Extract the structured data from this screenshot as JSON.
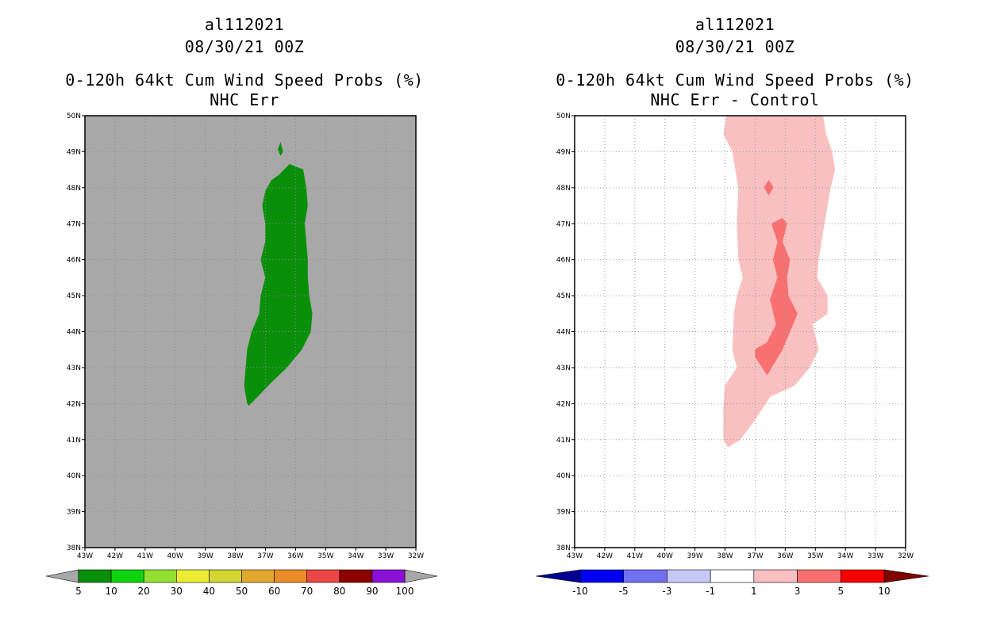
{
  "left_panel": {
    "storm_id": "al112021",
    "datetime": "08/30/21 00Z",
    "product": "0-120h 64kt Cum Wind Speed Probs (%)",
    "subtitle": "NHC Err",
    "colorbar": {
      "labels": [
        "5",
        "10",
        "20",
        "30",
        "40",
        "50",
        "60",
        "70",
        "80",
        "90",
        "100"
      ],
      "colors": [
        "#0a8f0a",
        "#0ed40e",
        "#92e032",
        "#ecec32",
        "#d4d432",
        "#e0a82c",
        "#ec8c28",
        "#ec4646",
        "#8c0000",
        "#8a12d8"
      ],
      "under_color": "#a8a8a8",
      "over_color": "#a8a8a8"
    },
    "background_color": "#a8a8a8"
  },
  "right_panel": {
    "storm_id": "al112021",
    "datetime": "08/30/21 00Z",
    "product": "0-120h 64kt Cum Wind Speed Probs (%)",
    "subtitle": "NHC Err - Control",
    "colorbar": {
      "labels": [
        "-10",
        "-5",
        "-3",
        "-1",
        "1",
        "3",
        "5",
        "10"
      ],
      "colors": [
        "#0000f0",
        "#7070f0",
        "#c8c8f8",
        "#ffffff",
        "#f8c0c0",
        "#f87070",
        "#f80000"
      ],
      "under_color": "#000090",
      "over_color": "#800000"
    },
    "background_color": "#ffffff"
  },
  "axes": {
    "lon_labels": [
      "43W",
      "42W",
      "41W",
      "40W",
      "39W",
      "38W",
      "37W",
      "36W",
      "35W",
      "34W",
      "33W",
      "32W"
    ],
    "lat_labels": [
      "38N",
      "39N",
      "40N",
      "41N",
      "42N",
      "43N",
      "44N",
      "45N",
      "46N",
      "47N",
      "48N",
      "49N",
      "50N"
    ],
    "lon_range": [
      -43,
      -32
    ],
    "lat_range": [
      38,
      50
    ]
  },
  "map_data": {
    "left_regions": [
      {
        "name": "prob-5-10-main",
        "color": "#0a8f0a",
        "coords": [
          [
            -37.55,
            41.95
          ],
          [
            -36.8,
            42.6
          ],
          [
            -36.3,
            43.0
          ],
          [
            -35.8,
            43.5
          ],
          [
            -35.5,
            44.0
          ],
          [
            -35.45,
            44.5
          ],
          [
            -35.55,
            45.0
          ],
          [
            -35.6,
            45.5
          ],
          [
            -35.6,
            46.0
          ],
          [
            -35.65,
            46.5
          ],
          [
            -35.7,
            47.0
          ],
          [
            -35.6,
            47.5
          ],
          [
            -35.65,
            48.0
          ],
          [
            -35.75,
            48.5
          ],
          [
            -36.2,
            48.65
          ],
          [
            -36.55,
            48.35
          ],
          [
            -36.8,
            48.2
          ],
          [
            -37.0,
            47.9
          ],
          [
            -37.1,
            47.5
          ],
          [
            -37.0,
            47.0
          ],
          [
            -37.0,
            46.5
          ],
          [
            -37.15,
            46.0
          ],
          [
            -37.0,
            45.5
          ],
          [
            -37.15,
            45.0
          ],
          [
            -37.2,
            44.5
          ],
          [
            -37.45,
            44.0
          ],
          [
            -37.6,
            43.5
          ],
          [
            -37.65,
            43.0
          ],
          [
            -37.7,
            42.5
          ],
          [
            -37.6,
            42.0
          ]
        ]
      },
      {
        "name": "prob-5-10-speck",
        "color": "#0a8f0a",
        "coords": [
          [
            -36.5,
            49.25
          ],
          [
            -36.42,
            49.0
          ],
          [
            -36.5,
            48.9
          ],
          [
            -36.58,
            49.05
          ]
        ]
      }
    ],
    "right_regions": [
      {
        "name": "diff-1-3",
        "color": "#f8c0c0",
        "coords": [
          [
            -37.95,
            50.0
          ],
          [
            -38.05,
            49.5
          ],
          [
            -37.75,
            49.0
          ],
          [
            -37.55,
            48.0
          ],
          [
            -37.6,
            47.0
          ],
          [
            -37.55,
            46.0
          ],
          [
            -37.4,
            45.5
          ],
          [
            -37.6,
            45.0
          ],
          [
            -37.7,
            44.5
          ],
          [
            -37.75,
            43.5
          ],
          [
            -37.6,
            43.0
          ],
          [
            -38.0,
            42.5
          ],
          [
            -38.05,
            41.9
          ],
          [
            -38.05,
            41.0
          ],
          [
            -37.9,
            40.8
          ],
          [
            -37.5,
            41.0
          ],
          [
            -37.05,
            41.5
          ],
          [
            -36.5,
            42.2
          ],
          [
            -35.7,
            42.5
          ],
          [
            -35.2,
            43.0
          ],
          [
            -34.9,
            43.5
          ],
          [
            -35.1,
            44.2
          ],
          [
            -34.6,
            44.5
          ],
          [
            -34.6,
            45.0
          ],
          [
            -34.95,
            45.5
          ],
          [
            -34.9,
            46.0
          ],
          [
            -34.7,
            47.0
          ],
          [
            -34.5,
            48.0
          ],
          [
            -34.35,
            48.5
          ],
          [
            -34.45,
            49.0
          ],
          [
            -34.65,
            49.5
          ],
          [
            -34.75,
            50.0
          ]
        ]
      },
      {
        "name": "diff-3-5-main",
        "color": "#f87070",
        "coords": [
          [
            -37.0,
            43.3
          ],
          [
            -36.6,
            42.8
          ],
          [
            -36.1,
            43.5
          ],
          [
            -35.6,
            44.5
          ],
          [
            -35.9,
            45.0
          ],
          [
            -35.95,
            45.5
          ],
          [
            -35.85,
            46.0
          ],
          [
            -36.1,
            46.5
          ],
          [
            -35.95,
            47.0
          ],
          [
            -36.1,
            47.15
          ],
          [
            -36.45,
            47.0
          ],
          [
            -36.25,
            46.5
          ],
          [
            -36.4,
            46.0
          ],
          [
            -36.25,
            45.5
          ],
          [
            -36.5,
            44.9
          ],
          [
            -36.3,
            44.2
          ],
          [
            -36.6,
            43.7
          ],
          [
            -37.0,
            43.5
          ]
        ]
      },
      {
        "name": "diff-3-5-speck",
        "color": "#f87070",
        "coords": [
          [
            -36.55,
            48.2
          ],
          [
            -36.4,
            48.0
          ],
          [
            -36.55,
            47.8
          ],
          [
            -36.7,
            48.0
          ]
        ]
      }
    ]
  }
}
